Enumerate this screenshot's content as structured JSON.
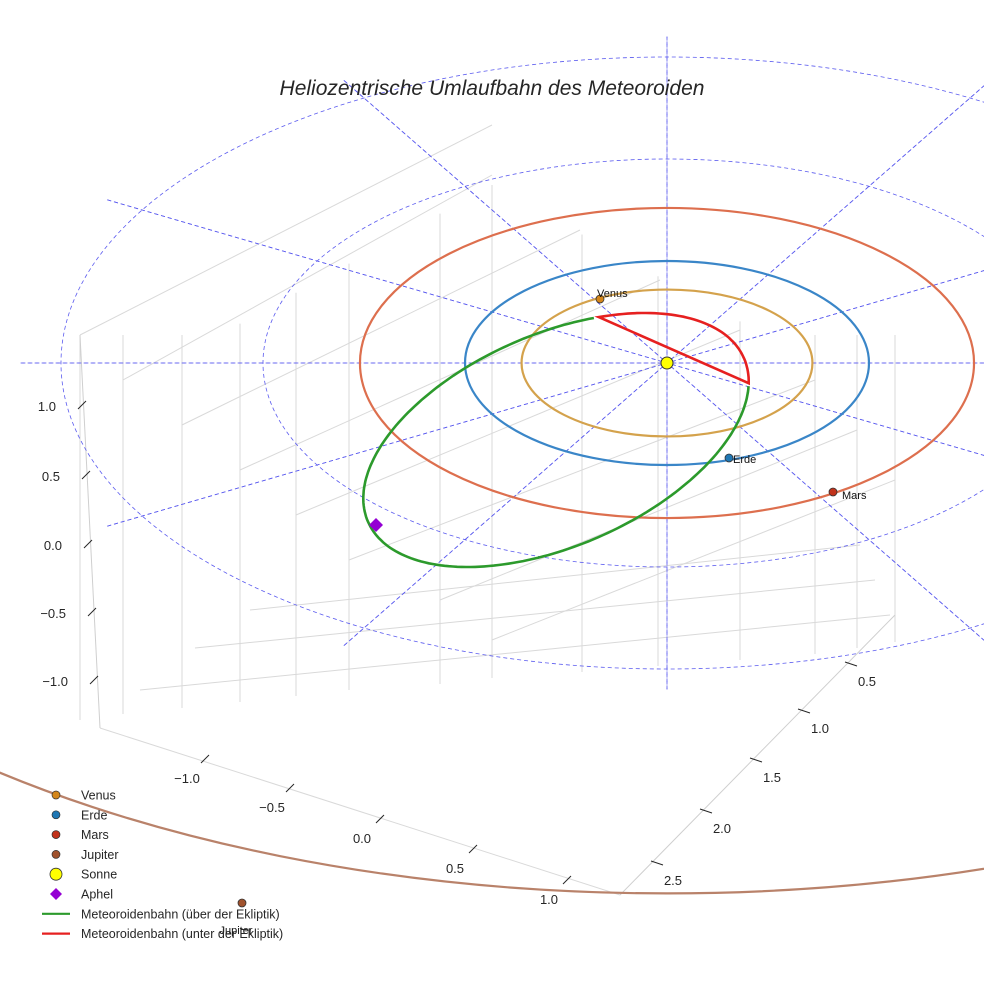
{
  "chart_data": {
    "type": "line",
    "projection": "3d",
    "title": "Heliozentrische Umlaufbahn des Meteoroiden",
    "xlabel": "",
    "ylabel": "",
    "zlabel": "",
    "x_ticks": [
      "−1.0",
      "−0.5",
      "0.0",
      "0.5",
      "1.0"
    ],
    "y_ticks": [
      "0.5",
      "1.0",
      "1.5",
      "2.0",
      "2.5"
    ],
    "z_ticks": [
      "1.0",
      "0.5",
      "0.0",
      "−0.5",
      "−1.0"
    ],
    "grid": true,
    "legend_position": "bottom-left",
    "orbits": [
      {
        "name": "Venus",
        "radius_au": 0.72,
        "color": "#d4a24c"
      },
      {
        "name": "Erde",
        "radius_au": 1.0,
        "color": "#3a86c8"
      },
      {
        "name": "Mars",
        "radius_au": 1.52,
        "color": "#dd6f4e"
      },
      {
        "name": "Jupiter",
        "radius_au": 5.2,
        "color": "#b9826a"
      }
    ],
    "bodies": [
      {
        "name": "Venus",
        "label": "Venus",
        "color": "#d4861a"
      },
      {
        "name": "Erde",
        "label": "Erde",
        "color": "#1f77b4"
      },
      {
        "name": "Mars",
        "label": "Mars",
        "color": "#c1321b"
      },
      {
        "name": "Jupiter",
        "label": "Jupiter",
        "color": "#a0522d"
      }
    ],
    "sun": {
      "name": "Sonne",
      "color": "#ffff00"
    },
    "aphel": {
      "name": "Aphel",
      "color": "#9400d3"
    },
    "meteoroid": {
      "above_name": "Meteoroidenbahn (über der Ekliptik)",
      "above_color": "#2c9a2c",
      "below_name": "Meteoroidenbahn (unter der Ekliptik)",
      "below_color": "#e62020"
    },
    "ecliptic_grid_color": "#5b5bef"
  },
  "legend": [
    {
      "label": "Venus",
      "marker": "circle",
      "color": "#d4861a"
    },
    {
      "label": "Erde",
      "marker": "circle",
      "color": "#1f77b4"
    },
    {
      "label": "Mars",
      "marker": "circle",
      "color": "#c1321b"
    },
    {
      "label": "Jupiter",
      "marker": "circle",
      "color": "#a0522d"
    },
    {
      "label": "Sonne",
      "marker": "sun",
      "color": "#ffff00"
    },
    {
      "label": "Aphel",
      "marker": "diamond",
      "color": "#9400d3"
    },
    {
      "label": "Meteoroidenbahn (über der Ekliptik)",
      "marker": "line",
      "color": "#2c9a2c"
    },
    {
      "label": "Meteoroidenbahn (unter der Ekliptik)",
      "marker": "line",
      "color": "#e62020"
    }
  ]
}
